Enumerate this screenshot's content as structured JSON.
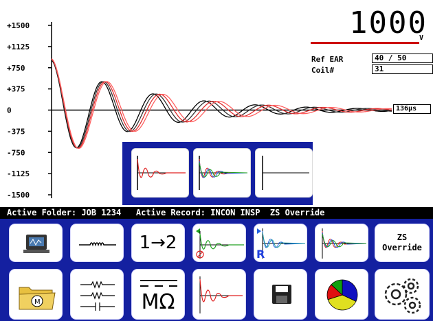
{
  "chart_data": {
    "type": "line",
    "y_ticks": [
      "+1500",
      "+1125",
      "+750",
      "+375",
      "0",
      "-375",
      "-750",
      "-1125",
      "-1500"
    ],
    "ylim": [
      -1500,
      1500
    ],
    "x_marker_label": "136µs",
    "series": [
      {
        "color": "#000000",
        "amplitude": 880,
        "period": 75,
        "decay": 0.0075
      },
      {
        "color": "#333333",
        "amplitude": 890,
        "period": 77.5,
        "decay": 0.0074
      },
      {
        "color": "#e03030",
        "amplitude": 900,
        "period": 80,
        "decay": 0.0073
      },
      {
        "color": "#ff6060",
        "amplitude": 910,
        "period": 82.5,
        "decay": 0.0072
      }
    ]
  },
  "readout": {
    "value": "1000",
    "unit": "V"
  },
  "fields": {
    "ref_ear_label": "Ref EAR",
    "ref_ear_value": "40 / 50",
    "coil_label": "Coil#",
    "coil_value": "31"
  },
  "status": {
    "text": "Active Folder: JOB 1234   Active Record: INCON INSP  ZS Override"
  },
  "buttons": {
    "ratio": "1→2",
    "zs_line1": "ZS",
    "zs_line2": "Override",
    "megohm": "MΩ",
    "r_label": "R"
  },
  "colors": {
    "button_panel": "#1420a0",
    "accent_red": "#cc0000",
    "pie": [
      "#1010c0",
      "#e0e020",
      "#e01010",
      "#10a010"
    ]
  },
  "icons": [
    "monitor-icon",
    "coil-icon",
    "compare-wave-icon",
    "reference-wave-icon",
    "multi-wave-icon",
    "folder-motor-icon",
    "circuit-icon",
    "save-disk-icon",
    "pie-chart-icon",
    "gears-icon"
  ]
}
